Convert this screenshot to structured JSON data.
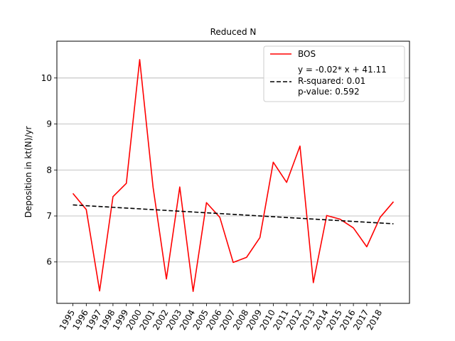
{
  "chart_data": {
    "type": "line",
    "title": "Reduced N",
    "xlabel": "",
    "ylabel": "Deposition in kt(N)/yr",
    "x_tick_labels": [
      "1995",
      "1996",
      "1997",
      "1998",
      "1999",
      "2000",
      "2001",
      "2002",
      "2003",
      "2004",
      "2005",
      "2006",
      "2007",
      "2008",
      "2009",
      "2010",
      "2011",
      "2012",
      "2013",
      "2014",
      "2015",
      "2016",
      "2017",
      "2018"
    ],
    "y_ticks": [
      6,
      7,
      8,
      9,
      10
    ],
    "ylim": [
      5.1,
      10.8
    ],
    "grid": "horizontal",
    "legend_position": "top-right",
    "series": [
      {
        "name": "BOS",
        "color": "#ff0000",
        "style": "solid",
        "x": [
          1995,
          1996,
          1997,
          1998,
          1999,
          2000,
          2001,
          2002,
          2003,
          2004,
          2005,
          2006,
          2007,
          2008,
          2009,
          2010,
          2011,
          2012,
          2013,
          2014,
          2015,
          2016,
          2017,
          2018,
          2019
        ],
        "values": [
          7.49,
          7.14,
          5.37,
          7.42,
          7.71,
          10.4,
          7.63,
          5.63,
          7.63,
          5.36,
          7.29,
          6.97,
          5.99,
          6.1,
          6.53,
          8.17,
          7.73,
          8.52,
          5.55,
          7.01,
          6.93,
          6.74,
          6.33,
          6.97,
          7.31
        ]
      },
      {
        "name": "y = -0.02* x + 41.11\nR-squared: 0.01\np-value: 0.592",
        "color": "#000000",
        "style": "dashed",
        "x": [
          1995,
          2019
        ],
        "values": [
          7.24,
          6.83
        ]
      }
    ],
    "legend": [
      {
        "label": "BOS"
      },
      {
        "label_lines": [
          "y = -0.02* x + 41.11",
          "R-squared: 0.01",
          "p-value: 0.592"
        ]
      }
    ]
  }
}
